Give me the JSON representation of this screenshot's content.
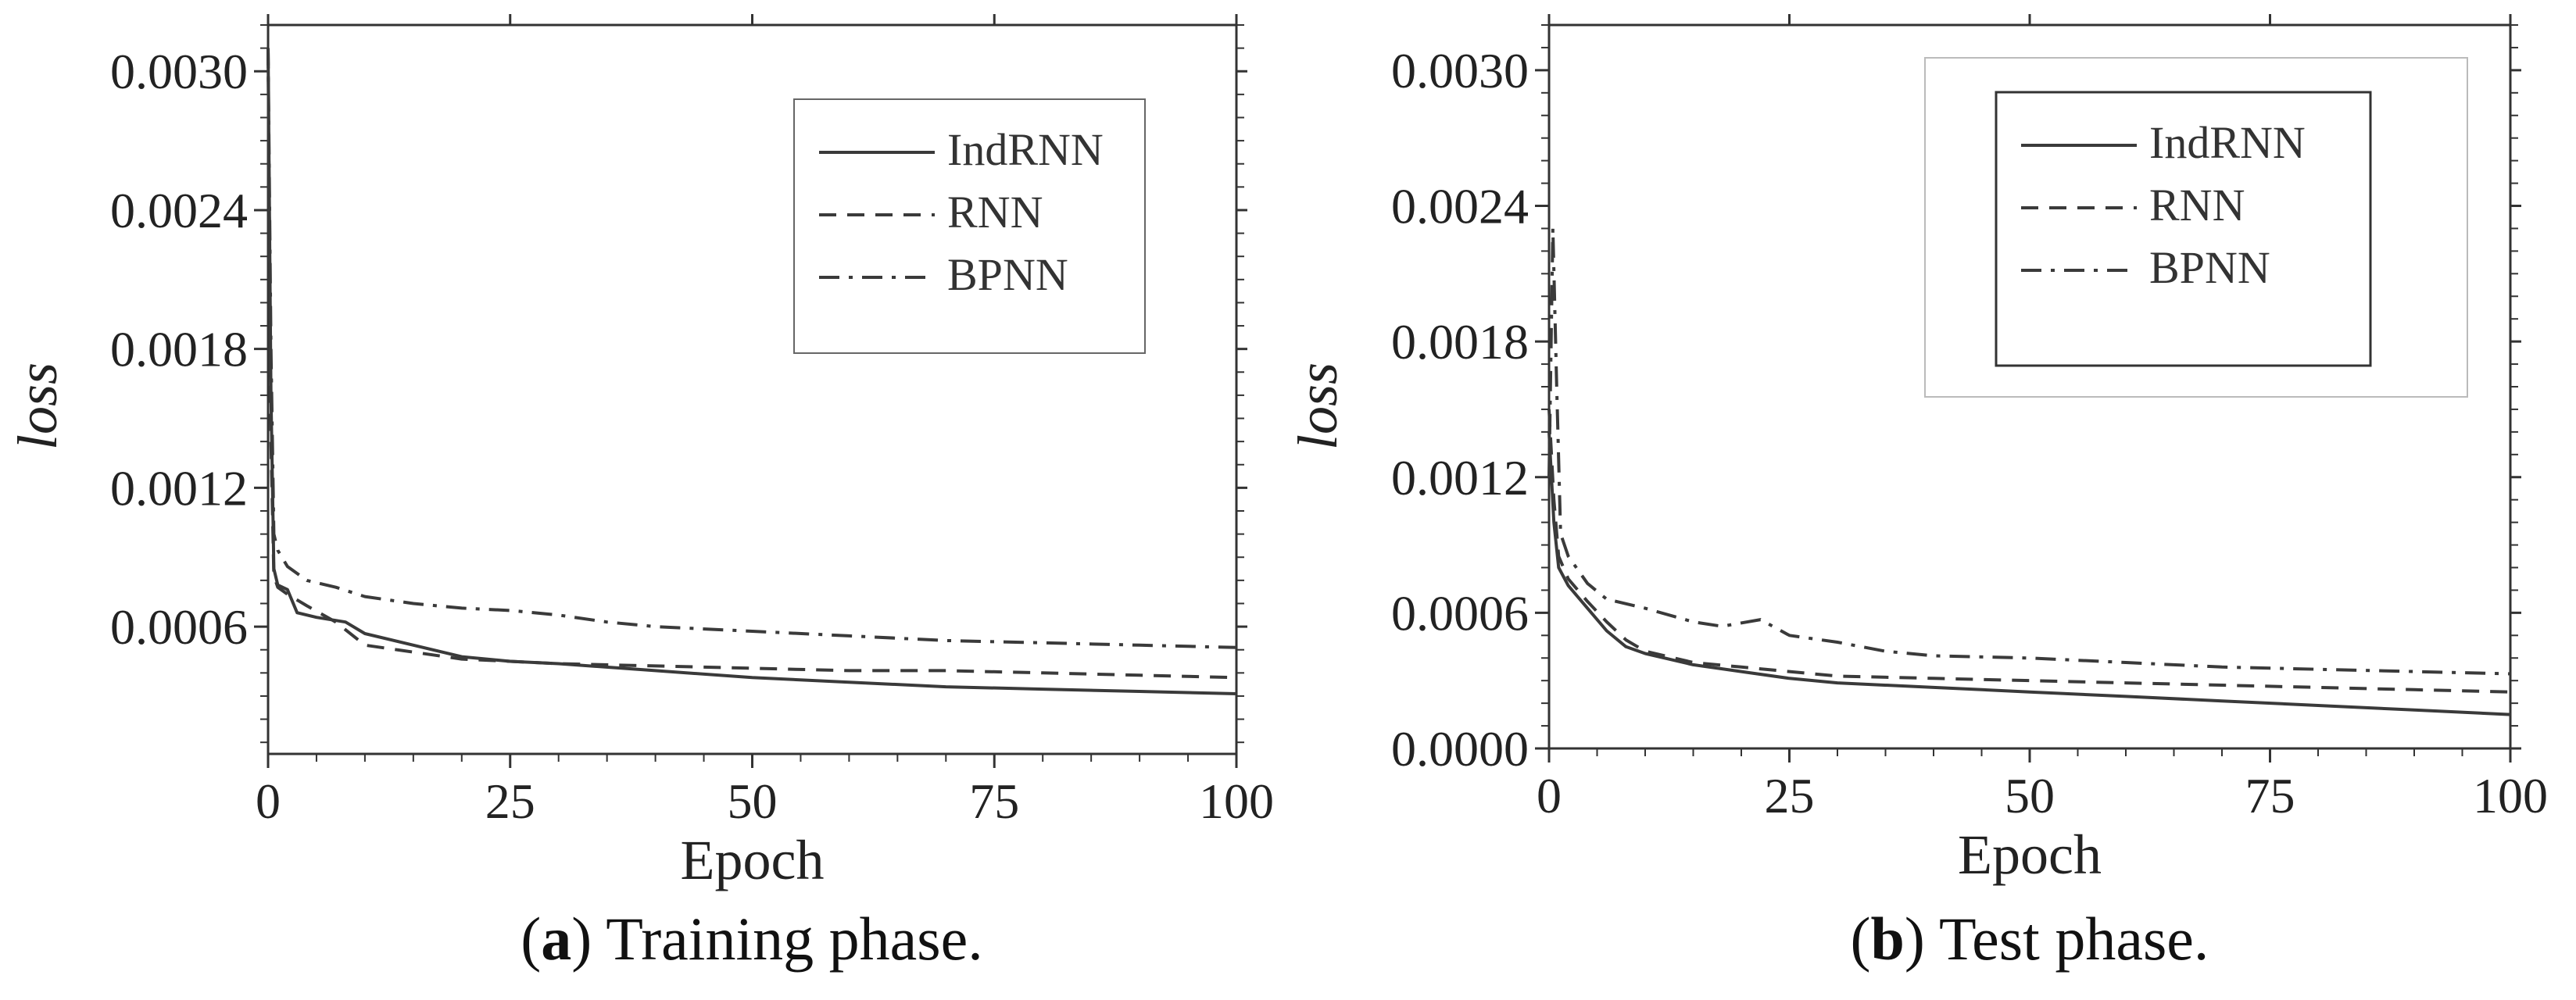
{
  "chart_data": [
    {
      "id": "a",
      "type": "line",
      "caption_letter": "a",
      "caption_text": ") Training phase.",
      "caption_open": "(",
      "xlabel": "Epoch",
      "ylabel": "loss",
      "xlim": [
        0,
        100
      ],
      "ylim": [
        5e-05,
        0.0032
      ],
      "xticks": [
        0,
        25,
        50,
        75,
        100
      ],
      "xtick_labels": [
        "0",
        "25",
        "50",
        "75",
        "100"
      ],
      "yticks": [
        0.0006,
        0.0012,
        0.0018,
        0.0024,
        0.003
      ],
      "ytick_labels": [
        "0.0006",
        "0.0012",
        "0.0018",
        "0.0024",
        "0.0030"
      ],
      "legend_position": "top-right",
      "legend_style": "single-box",
      "series": [
        {
          "name": "IndRNN",
          "style": "solid",
          "x": [
            0,
            0.3,
            0.6,
            1,
            2,
            3,
            5,
            8,
            10,
            15,
            20,
            25,
            30,
            40,
            50,
            60,
            70,
            80,
            90,
            100
          ],
          "y": [
            0.0031,
            0.0016,
            0.00085,
            0.00078,
            0.00076,
            0.00066,
            0.00064,
            0.00062,
            0.00057,
            0.00052,
            0.00047,
            0.00045,
            0.00044,
            0.00041,
            0.00038,
            0.00036,
            0.00034,
            0.00033,
            0.00032,
            0.00031
          ]
        },
        {
          "name": "RNN",
          "style": "dashed",
          "x": [
            0,
            0.3,
            0.6,
            1,
            2,
            4,
            7,
            10,
            15,
            20,
            25,
            30,
            40,
            50,
            60,
            70,
            80,
            90,
            100
          ],
          "y": [
            0.0031,
            0.0014,
            0.00082,
            0.00077,
            0.00074,
            0.00069,
            0.00062,
            0.00052,
            0.00049,
            0.00046,
            0.00045,
            0.00044,
            0.00043,
            0.00042,
            0.00041,
            0.00041,
            0.0004,
            0.00039,
            0.00038
          ]
        },
        {
          "name": "BPNN",
          "style": "dashdot",
          "x": [
            0,
            0.3,
            0.6,
            1,
            2,
            4,
            7,
            10,
            15,
            20,
            25,
            30,
            35,
            40,
            50,
            60,
            70,
            80,
            90,
            100
          ],
          "y": [
            0.0031,
            0.0018,
            0.001,
            0.00093,
            0.00086,
            0.0008,
            0.00077,
            0.00073,
            0.0007,
            0.00068,
            0.00067,
            0.00065,
            0.00062,
            0.0006,
            0.00058,
            0.00056,
            0.00054,
            0.00053,
            0.00052,
            0.00051
          ]
        }
      ]
    },
    {
      "id": "b",
      "type": "line",
      "caption_letter": "b",
      "caption_text": ") Test phase.",
      "caption_open": "(",
      "xlabel": "Epoch",
      "ylabel": "loss",
      "xlim": [
        0,
        100
      ],
      "ylim": [
        0.0,
        0.0032
      ],
      "xticks": [
        0,
        25,
        50,
        75,
        100
      ],
      "xtick_labels": [
        "0",
        "25",
        "50",
        "75",
        "100"
      ],
      "yticks": [
        0.0,
        0.0006,
        0.0012,
        0.0018,
        0.0024,
        0.003
      ],
      "ytick_labels": [
        "0.0000",
        "0.0006",
        "0.0012",
        "0.0018",
        "0.0024",
        "0.0030"
      ],
      "legend_position": "top-right",
      "legend_style": "double-box",
      "series": [
        {
          "name": "IndRNN",
          "style": "solid",
          "x": [
            0,
            0.5,
            1,
            2,
            4,
            6,
            8,
            10,
            15,
            20,
            25,
            30,
            40,
            50,
            60,
            70,
            80,
            90,
            100
          ],
          "y": [
            0.0014,
            0.001,
            0.0008,
            0.00072,
            0.00062,
            0.00052,
            0.00045,
            0.00042,
            0.00037,
            0.00034,
            0.00031,
            0.00029,
            0.00027,
            0.00025,
            0.00023,
            0.00021,
            0.00019,
            0.00017,
            0.00015
          ]
        },
        {
          "name": "RNN",
          "style": "dashed",
          "x": [
            0,
            0.5,
            1,
            2,
            4,
            6,
            8,
            10,
            15,
            20,
            25,
            30,
            40,
            50,
            60,
            70,
            80,
            90,
            100
          ],
          "y": [
            0.0015,
            0.0011,
            0.00085,
            0.00075,
            0.00065,
            0.00056,
            0.00048,
            0.00043,
            0.00038,
            0.00036,
            0.00034,
            0.00032,
            0.00031,
            0.0003,
            0.00029,
            0.00028,
            0.00027,
            0.00026,
            0.00025
          ]
        },
        {
          "name": "BPNN",
          "style": "dashdot",
          "x": [
            0,
            0.4,
            0.8,
            1.2,
            2,
            4,
            6,
            10,
            15,
            18,
            22,
            25,
            30,
            35,
            40,
            50,
            60,
            70,
            80,
            90,
            100
          ],
          "y": [
            0.0012,
            0.0023,
            0.0016,
            0.00095,
            0.00085,
            0.00073,
            0.00066,
            0.00062,
            0.00056,
            0.00054,
            0.00057,
            0.0005,
            0.00047,
            0.00043,
            0.00041,
            0.0004,
            0.00038,
            0.00036,
            0.00035,
            0.00034,
            0.00033
          ]
        }
      ]
    }
  ]
}
